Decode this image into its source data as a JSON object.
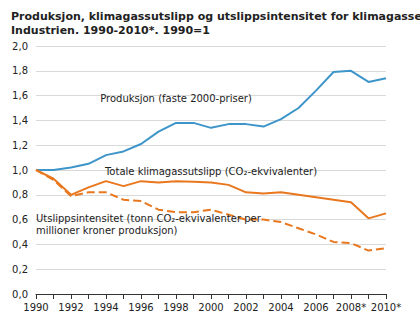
{
  "chart_data": {
    "type": "line",
    "title": "Produksjon, klimagassutslipp og utslippsintensitet for klimagasser.\nIndustrien. 1990-2010*. 1990=1",
    "categories": [
      "1990",
      null,
      "1992",
      null,
      "1994",
      null,
      "1996",
      null,
      "1998",
      null,
      "2000",
      null,
      "2002",
      null,
      "2004",
      null,
      "2006",
      null,
      "2008*",
      null,
      "2010*"
    ],
    "series": [
      {
        "name": "Produksjon (faste 2000-priser)",
        "color": "#3d95c9",
        "line_style": "solid",
        "values": [
          1.0,
          1.0,
          1.02,
          1.05,
          1.12,
          1.15,
          1.21,
          1.31,
          1.38,
          1.38,
          1.34,
          1.37,
          1.37,
          1.35,
          1.41,
          1.5,
          1.64,
          1.79,
          1.8,
          1.71,
          1.74
        ]
      },
      {
        "name": "Totale klimagassutslipp (CO₂-ekvivalenter)",
        "color": "#e8771e",
        "line_style": "solid",
        "values": [
          1.0,
          0.93,
          0.8,
          0.86,
          0.91,
          0.87,
          0.91,
          0.9,
          0.91,
          0.905,
          0.9,
          0.88,
          0.82,
          0.81,
          0.82,
          0.8,
          0.78,
          0.76,
          0.74,
          0.61,
          0.65
        ]
      },
      {
        "name": "Utslippsintensitet (tonn CO₂-ekvivalenter per\nmillioner kroner produksjon)",
        "color": "#e8771e",
        "line_style": "dashed",
        "values": [
          1.0,
          0.92,
          0.79,
          0.82,
          0.82,
          0.76,
          0.75,
          0.68,
          0.66,
          0.66,
          0.68,
          0.64,
          0.6,
          0.6,
          0.58,
          0.53,
          0.48,
          0.42,
          0.41,
          0.35,
          0.37
        ]
      }
    ],
    "ylim": [
      0,
      2.0
    ],
    "yticks": [
      {
        "value": 0,
        "label": "0,0"
      },
      {
        "value": 0.2,
        "label": "0,2"
      },
      {
        "value": 0.4,
        "label": "0,4"
      },
      {
        "value": 0.6,
        "label": "0,6"
      },
      {
        "value": 0.8,
        "label": "0,8"
      },
      {
        "value": 1.0,
        "label": "1,0"
      },
      {
        "value": 1.2,
        "label": "1,2"
      },
      {
        "value": 1.4,
        "label": "1,4"
      },
      {
        "value": 1.6,
        "label": "1,6"
      },
      {
        "value": 1.8,
        "label": "1,8"
      },
      {
        "value": 2.0,
        "label": "2,0"
      }
    ],
    "grid": true
  }
}
